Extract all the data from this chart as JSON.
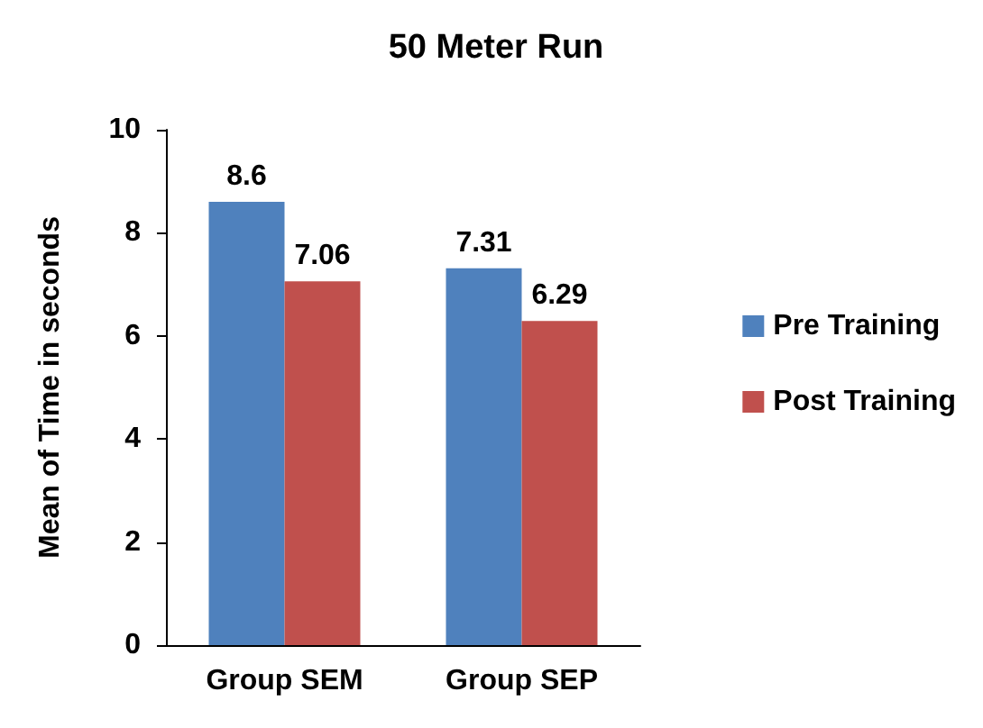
{
  "chart_data": {
    "type": "bar",
    "title": "50 Meter Run",
    "ylabel": "Mean of Time in seconds",
    "categories": [
      "Group SEM",
      "Group SEP"
    ],
    "series": [
      {
        "name": "Pre Training",
        "color": "#4f81bd",
        "values": [
          8.6,
          7.31
        ]
      },
      {
        "name": "Post Training",
        "color": "#c0504d",
        "values": [
          7.06,
          6.29
        ]
      }
    ],
    "ylim": [
      0,
      10
    ],
    "yticks": [
      0,
      2,
      4,
      6,
      8,
      10
    ],
    "grid": false,
    "legend": "right",
    "data_labels": true
  }
}
